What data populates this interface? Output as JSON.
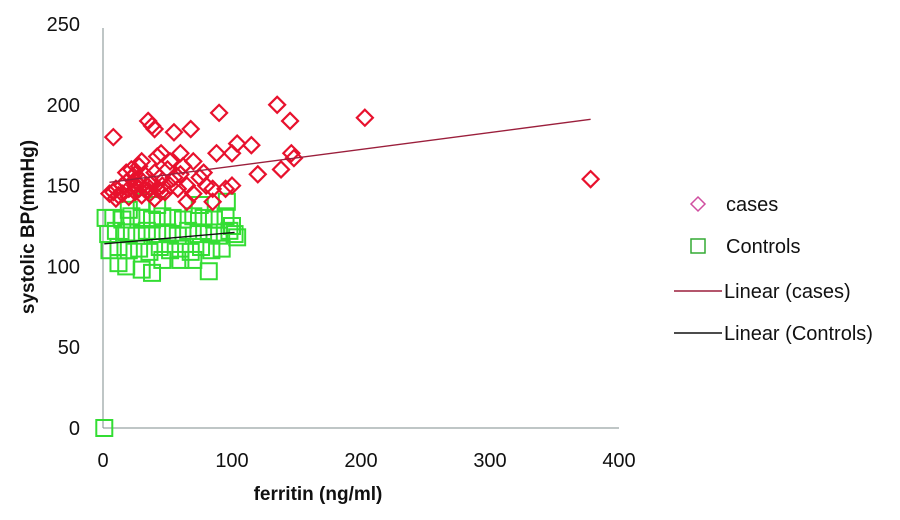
{
  "chart_data": {
    "type": "scatter",
    "title": "",
    "xlabel": "ferritin (ng/ml)",
    "ylabel": "systolic BP(mmHg)",
    "xlim": [
      0,
      400
    ],
    "ylim": [
      0,
      250
    ],
    "xticks": [
      "0",
      "100",
      "200",
      "300",
      "400"
    ],
    "yticks": [
      "0",
      "50",
      "100",
      "150",
      "200",
      "250"
    ],
    "grid": false,
    "legend_position": "right",
    "series": [
      {
        "name": "cases",
        "marker": "diamond",
        "color": "#e8112d",
        "legend_color": "#d04fa0",
        "points": [
          [
            8,
            180
          ],
          [
            28,
            162
          ],
          [
            25,
            157
          ],
          [
            35,
            190
          ],
          [
            38,
            187
          ],
          [
            40,
            185
          ],
          [
            45,
            170
          ],
          [
            42,
            168
          ],
          [
            52,
            165
          ],
          [
            55,
            183
          ],
          [
            60,
            170
          ],
          [
            60,
            157
          ],
          [
            68,
            185
          ],
          [
            70,
            165
          ],
          [
            78,
            158
          ],
          [
            90,
            195
          ],
          [
            88,
            170
          ],
          [
            100,
            170
          ],
          [
            104,
            176
          ],
          [
            100,
            150
          ],
          [
            95,
            148
          ],
          [
            115,
            175
          ],
          [
            120,
            157
          ],
          [
            135,
            200
          ],
          [
            138,
            160
          ],
          [
            145,
            190
          ],
          [
            146,
            170
          ],
          [
            148,
            167
          ],
          [
            203,
            192
          ],
          [
            378,
            154
          ],
          [
            5,
            145
          ],
          [
            8,
            146
          ],
          [
            10,
            148
          ],
          [
            12,
            144
          ],
          [
            15,
            150
          ],
          [
            18,
            152
          ],
          [
            20,
            148
          ],
          [
            22,
            155
          ],
          [
            25,
            150
          ],
          [
            28,
            148
          ],
          [
            30,
            153
          ],
          [
            32,
            157
          ],
          [
            34,
            150
          ],
          [
            36,
            145
          ],
          [
            38,
            152
          ],
          [
            40,
            158
          ],
          [
            42,
            148
          ],
          [
            44,
            155
          ],
          [
            46,
            150
          ],
          [
            48,
            146
          ],
          [
            50,
            160
          ],
          [
            52,
            150
          ],
          [
            55,
            155
          ],
          [
            58,
            148
          ],
          [
            62,
            162
          ],
          [
            65,
            150
          ],
          [
            70,
            145
          ],
          [
            75,
            155
          ],
          [
            80,
            150
          ],
          [
            85,
            148
          ],
          [
            10,
            142
          ],
          [
            15,
            145
          ],
          [
            20,
            143
          ],
          [
            25,
            146
          ],
          [
            30,
            144
          ],
          [
            35,
            147
          ],
          [
            40,
            142
          ],
          [
            45,
            146
          ],
          [
            22,
            160
          ],
          [
            30,
            165
          ],
          [
            18,
            158
          ],
          [
            26,
            152
          ],
          [
            32,
            148
          ],
          [
            65,
            140
          ],
          [
            85,
            140
          ]
        ],
        "trendline": {
          "name": "Linear (cases)",
          "color": "#9b1f3c",
          "x": [
            5,
            378
          ],
          "y": [
            152,
            191
          ]
        }
      },
      {
        "name": "Controls",
        "marker": "square",
        "color": "#33dd33",
        "legend_color": "#33aa33",
        "points": [
          [
            1,
            0
          ],
          [
            2,
            130
          ],
          [
            8,
            130
          ],
          [
            15,
            129
          ],
          [
            22,
            131
          ],
          [
            30,
            130
          ],
          [
            38,
            129
          ],
          [
            46,
            131
          ],
          [
            54,
            130
          ],
          [
            62,
            129
          ],
          [
            70,
            131
          ],
          [
            78,
            130
          ],
          [
            86,
            129
          ],
          [
            95,
            131
          ],
          [
            4,
            120
          ],
          [
            10,
            122
          ],
          [
            18,
            121
          ],
          [
            26,
            119
          ],
          [
            34,
            122
          ],
          [
            42,
            120
          ],
          [
            50,
            121
          ],
          [
            58,
            119
          ],
          [
            66,
            122
          ],
          [
            74,
            120
          ],
          [
            82,
            121
          ],
          [
            90,
            119
          ],
          [
            98,
            122
          ],
          [
            102,
            120
          ],
          [
            5,
            110
          ],
          [
            12,
            112
          ],
          [
            20,
            110
          ],
          [
            28,
            111
          ],
          [
            36,
            109
          ],
          [
            44,
            112
          ],
          [
            52,
            110
          ],
          [
            60,
            111
          ],
          [
            68,
            109
          ],
          [
            76,
            112
          ],
          [
            84,
            110
          ],
          [
            92,
            111
          ],
          [
            12,
            102
          ],
          [
            18,
            100
          ],
          [
            30,
            98
          ],
          [
            38,
            96
          ],
          [
            46,
            104
          ],
          [
            60,
            104
          ],
          [
            70,
            104
          ],
          [
            82,
            97
          ],
          [
            96,
            140
          ],
          [
            75,
            138
          ],
          [
            42,
            138
          ],
          [
            30,
            140
          ],
          [
            20,
            135
          ],
          [
            100,
            125
          ],
          [
            104,
            118
          ]
        ],
        "trendline": {
          "name": "Linear (Controls)",
          "color": "#111111",
          "x": [
            1,
            102
          ],
          "y": [
            114,
            121
          ]
        }
      }
    ]
  }
}
